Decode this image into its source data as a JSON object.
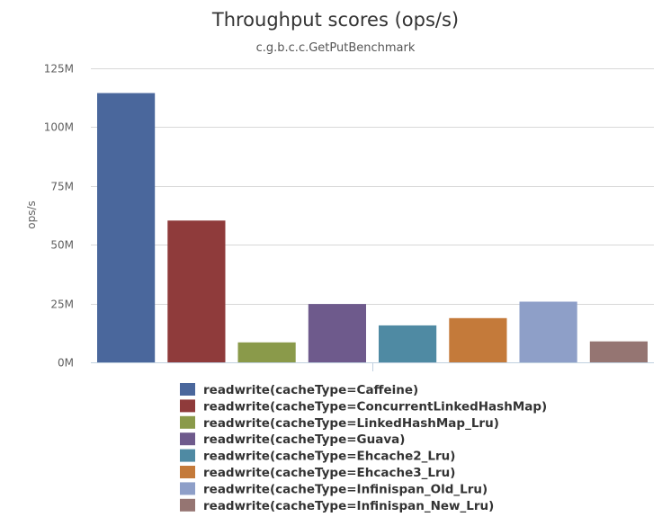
{
  "chart_data": {
    "type": "bar",
    "title": "Throughput scores (ops/s)",
    "subtitle": "c.g.b.c.c.GetPutBenchmark",
    "xlabel": "",
    "ylabel": "ops/s",
    "ylim": [
      0,
      125000000
    ],
    "yticks": [
      {
        "value": 0,
        "label": "0M"
      },
      {
        "value": 25000000,
        "label": "25M"
      },
      {
        "value": 50000000,
        "label": "50M"
      },
      {
        "value": 75000000,
        "label": "75M"
      },
      {
        "value": 100000000,
        "label": "100M"
      },
      {
        "value": 125000000,
        "label": "125M"
      }
    ],
    "grid": true,
    "legend_position": "bottom",
    "series": [
      {
        "name": "readwrite(cacheType=Caffeine)",
        "values": [
          114500000
        ],
        "color": "#4a679c"
      },
      {
        "name": "readwrite(cacheType=ConcurrentLinkedHashMap)",
        "values": [
          60300000
        ],
        "color": "#8f3b3b"
      },
      {
        "name": "readwrite(cacheType=LinkedHashMap_Lru)",
        "values": [
          8500000
        ],
        "color": "#8a9a4a"
      },
      {
        "name": "readwrite(cacheType=Guava)",
        "values": [
          24800000
        ],
        "color": "#6e5a8c"
      },
      {
        "name": "readwrite(cacheType=Ehcache2_Lru)",
        "values": [
          15700000
        ],
        "color": "#4f8aa3"
      },
      {
        "name": "readwrite(cacheType=Ehcache3_Lru)",
        "values": [
          18800000
        ],
        "color": "#c47a3a"
      },
      {
        "name": "readwrite(cacheType=Infinispan_Old_Lru)",
        "values": [
          25800000
        ],
        "color": "#8e9fc8"
      },
      {
        "name": "readwrite(cacheType=Infinispan_New_Lru)",
        "values": [
          8900000
        ],
        "color": "#957572"
      }
    ]
  }
}
